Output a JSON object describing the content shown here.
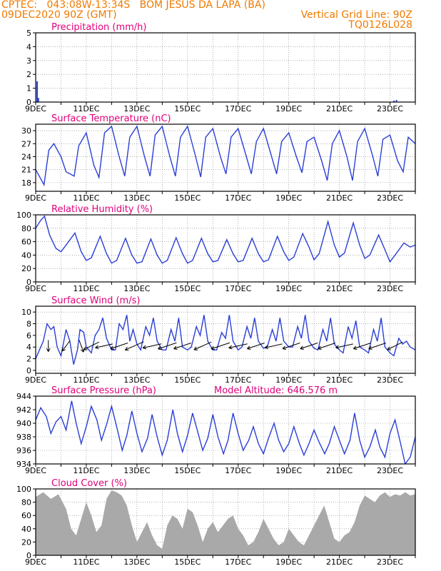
{
  "header": {
    "line1_left": "CPTEC:   043:08W-13:34S   BOM JESUS DA LAPA (BA)",
    "line2_left": "09DEC2020 90Z (GMT)",
    "line2_right": "Vertical Grid Line: 90Z",
    "line3_right": "TQ0126L028"
  },
  "colors": {
    "header": "#f07a00",
    "title": "#e0007a",
    "series": "#2a3fd6",
    "cloud": "#a9a9a9",
    "grid": "#808080"
  },
  "x_axis_labels": [
    "9DEC",
    "11DEC",
    "13DEC",
    "15DEC",
    "17DEC",
    "19DEC",
    "21DEC",
    "23DEC"
  ],
  "chart_data": [
    {
      "id": "precip",
      "type": "bar",
      "title": "Precipitation (mm/h)",
      "ylim": [
        0,
        5
      ],
      "yticks": [
        "0",
        "1",
        "2",
        "3",
        "4",
        "5"
      ],
      "x": [
        0.0,
        0.05,
        14.1,
        14.2
      ],
      "values": [
        1.5,
        0.3,
        0.1,
        0.15
      ]
    },
    {
      "id": "temp",
      "type": "line",
      "title": "Surface Temperature (nC)",
      "ylim": [
        16,
        31.5
      ],
      "yticks": [
        "18",
        "21",
        "24",
        "27",
        "30"
      ],
      "x": [
        0.0,
        0.33,
        0.52,
        0.72,
        1.0,
        1.2,
        1.52,
        1.7,
        2.0,
        2.3,
        2.5,
        2.72,
        3.0,
        3.3,
        3.52,
        3.72,
        4.0,
        4.3,
        4.52,
        4.72,
        5.0,
        5.3,
        5.52,
        5.72,
        6.0,
        6.3,
        6.52,
        6.72,
        7.0,
        7.3,
        7.52,
        7.72,
        8.0,
        8.3,
        8.52,
        8.72,
        9.0,
        9.3,
        9.52,
        9.72,
        10.0,
        10.3,
        10.52,
        10.72,
        11.0,
        11.3,
        11.52,
        11.72,
        12.0,
        12.3,
        12.52,
        12.72,
        13.0,
        13.3,
        13.52,
        13.72,
        14.0,
        14.3,
        14.52,
        14.72,
        15.0
      ],
      "values": [
        21.0,
        17.5,
        25.5,
        27.0,
        24.0,
        20.5,
        19.5,
        26.5,
        29.5,
        22.0,
        19.2,
        29.5,
        31.0,
        24.0,
        19.5,
        28.5,
        31.0,
        24.0,
        19.5,
        29.0,
        31.0,
        24.0,
        19.5,
        28.5,
        31.0,
        24.5,
        19.3,
        28.5,
        30.5,
        24.0,
        20.0,
        28.5,
        30.5,
        24.5,
        20.0,
        27.5,
        30.5,
        24.5,
        20.0,
        27.5,
        29.5,
        24.0,
        20.3,
        27.5,
        28.5,
        23.0,
        18.5,
        27.0,
        30.0,
        24.0,
        18.5,
        27.5,
        30.5,
        24.5,
        19.5,
        28.0,
        29.0,
        23.0,
        20.5,
        28.5,
        27.0
      ]
    },
    {
      "id": "rh",
      "type": "line",
      "title": "Relative Humidity (%)",
      "ylim": [
        0,
        100
      ],
      "yticks": [
        "0",
        "20",
        "40",
        "60",
        "80",
        "100"
      ],
      "x": [
        0.0,
        0.2,
        0.35,
        0.55,
        0.8,
        1.0,
        1.2,
        1.55,
        1.8,
        2.0,
        2.2,
        2.55,
        2.8,
        3.0,
        3.2,
        3.55,
        3.8,
        4.0,
        4.2,
        4.55,
        4.8,
        5.0,
        5.2,
        5.55,
        5.8,
        6.0,
        6.2,
        6.55,
        6.8,
        7.0,
        7.2,
        7.55,
        7.8,
        8.0,
        8.2,
        8.55,
        8.8,
        9.0,
        9.2,
        9.55,
        9.8,
        10.0,
        10.2,
        10.55,
        10.8,
        11.0,
        11.2,
        11.55,
        11.8,
        12.0,
        12.2,
        12.55,
        12.8,
        13.0,
        13.2,
        13.55,
        13.8,
        14.0,
        14.2,
        14.55,
        14.8,
        15.0
      ],
      "values": [
        80,
        92,
        98,
        70,
        50,
        45,
        55,
        73,
        45,
        32,
        36,
        68,
        42,
        28,
        32,
        65,
        40,
        28,
        30,
        64,
        40,
        28,
        32,
        66,
        42,
        28,
        32,
        65,
        42,
        30,
        32,
        63,
        42,
        30,
        32,
        65,
        42,
        30,
        33,
        68,
        45,
        32,
        37,
        72,
        52,
        33,
        42,
        90,
        55,
        37,
        43,
        88,
        55,
        35,
        40,
        70,
        48,
        30,
        40,
        58,
        52,
        55
      ]
    },
    {
      "id": "wind",
      "type": "line",
      "title": "Surface Wind (m/s)",
      "ylim": [
        -0.5,
        11
      ],
      "yticks": [
        "0",
        "2",
        "4",
        "6",
        "8",
        "10"
      ],
      "x": [
        0.0,
        0.15,
        0.3,
        0.45,
        0.6,
        0.72,
        0.85,
        1.0,
        1.2,
        1.35,
        1.5,
        1.65,
        1.75,
        1.9,
        2.0,
        2.2,
        2.35,
        2.5,
        2.65,
        2.8,
        3.0,
        3.15,
        3.3,
        3.45,
        3.6,
        3.72,
        3.85,
        4.0,
        4.15,
        4.35,
        4.5,
        4.65,
        4.8,
        5.0,
        5.15,
        5.35,
        5.5,
        5.65,
        5.8,
        6.0,
        6.15,
        6.35,
        6.5,
        6.65,
        6.8,
        7.0,
        7.15,
        7.35,
        7.5,
        7.65,
        7.8,
        8.0,
        8.15,
        8.35,
        8.5,
        8.65,
        8.8,
        9.0,
        9.15,
        9.35,
        9.5,
        9.65,
        9.8,
        10.0,
        10.15,
        10.35,
        10.5,
        10.65,
        10.8,
        11.0,
        11.15,
        11.35,
        11.5,
        11.65,
        11.8,
        12.0,
        12.15,
        12.35,
        12.5,
        12.65,
        12.8,
        13.0,
        13.15,
        13.35,
        13.5,
        13.65,
        13.8,
        14.0,
        14.15,
        14.35,
        14.5,
        14.65,
        14.8,
        15.0
      ],
      "values": [
        2.0,
        3.5,
        5.0,
        8.0,
        7.0,
        7.5,
        4.0,
        2.5,
        7.0,
        5.0,
        1.0,
        3.5,
        7.0,
        6.5,
        4.0,
        3.0,
        6.0,
        7.0,
        9.0,
        5.5,
        3.5,
        3.5,
        8.0,
        7.0,
        9.5,
        5.0,
        7.0,
        4.5,
        3.5,
        7.5,
        6.0,
        9.0,
        5.0,
        3.5,
        3.5,
        7.0,
        5.0,
        9.0,
        4.0,
        3.5,
        4.0,
        7.5,
        6.0,
        9.5,
        5.0,
        3.5,
        3.5,
        6.5,
        5.5,
        9.5,
        5.0,
        3.5,
        4.0,
        7.5,
        5.5,
        9.0,
        5.0,
        3.8,
        4.0,
        7.0,
        5.0,
        9.0,
        5.0,
        4.0,
        4.0,
        7.5,
        5.5,
        9.5,
        5.0,
        3.8,
        3.5,
        7.0,
        5.0,
        9.0,
        4.5,
        3.5,
        3.0,
        7.5,
        5.5,
        8.5,
        4.0,
        3.5,
        3.0,
        7.0,
        5.0,
        9.0,
        4.0,
        3.0,
        2.5,
        5.5,
        4.5,
        5.0,
        4.0,
        3.5
      ]
    },
    {
      "id": "pressure",
      "type": "line",
      "title": "Surface Pressure (hPa)",
      "annotation": "Model Altitude: 646.576 m",
      "ylim": [
        934,
        944
      ],
      "yticks": [
        "934",
        "936",
        "938",
        "940",
        "942",
        "944"
      ],
      "x": [
        0.0,
        0.2,
        0.42,
        0.6,
        0.8,
        1.0,
        1.2,
        1.42,
        1.6,
        1.8,
        2.0,
        2.2,
        2.42,
        2.6,
        2.8,
        3.0,
        3.2,
        3.42,
        3.6,
        3.8,
        4.0,
        4.2,
        4.42,
        4.6,
        4.8,
        5.0,
        5.2,
        5.42,
        5.6,
        5.8,
        6.0,
        6.2,
        6.42,
        6.6,
        6.8,
        7.0,
        7.2,
        7.42,
        7.6,
        7.8,
        8.0,
        8.2,
        8.42,
        8.6,
        8.8,
        9.0,
        9.2,
        9.42,
        9.6,
        9.8,
        10.0,
        10.2,
        10.42,
        10.6,
        10.8,
        11.0,
        11.2,
        11.42,
        11.6,
        11.8,
        12.0,
        12.2,
        12.42,
        12.6,
        12.8,
        13.0,
        13.2,
        13.42,
        13.6,
        13.8,
        14.0,
        14.2,
        14.42,
        14.6,
        14.8,
        15.0
      ],
      "values": [
        940.5,
        942.3,
        941.0,
        938.5,
        940.2,
        941.0,
        939.0,
        943.3,
        940.0,
        937.0,
        939.5,
        942.5,
        940.5,
        937.5,
        939.8,
        942.5,
        939.5,
        936.0,
        938.2,
        941.8,
        938.5,
        935.8,
        937.8,
        941.3,
        938.0,
        935.3,
        937.5,
        942.0,
        938.5,
        935.8,
        938.2,
        941.5,
        938.5,
        936.0,
        937.8,
        941.3,
        938.0,
        935.5,
        937.5,
        941.5,
        938.5,
        936.0,
        937.5,
        939.5,
        937.0,
        935.5,
        937.8,
        940.0,
        937.5,
        935.8,
        937.0,
        939.5,
        937.0,
        935.3,
        937.0,
        939.0,
        937.2,
        935.5,
        937.0,
        939.5,
        937.5,
        935.5,
        937.5,
        941.5,
        937.5,
        935.0,
        936.5,
        939.0,
        936.5,
        935.0,
        938.5,
        940.5,
        937.0,
        934.0,
        935.0,
        938.0
      ]
    },
    {
      "id": "cloud",
      "type": "area",
      "title": "Cloud Cover (%)",
      "ylim": [
        0,
        100
      ],
      "yticks": [
        "0",
        "20",
        "40",
        "60",
        "80",
        "100"
      ],
      "x": [
        0.0,
        0.3,
        0.6,
        0.9,
        1.2,
        1.4,
        1.6,
        1.8,
        2.0,
        2.2,
        2.4,
        2.6,
        2.8,
        3.0,
        3.2,
        3.4,
        3.6,
        3.8,
        4.0,
        4.2,
        4.4,
        4.6,
        4.8,
        5.0,
        5.2,
        5.4,
        5.6,
        5.8,
        6.0,
        6.2,
        6.4,
        6.6,
        6.8,
        7.0,
        7.2,
        7.4,
        7.6,
        7.8,
        8.0,
        8.2,
        8.4,
        8.6,
        8.8,
        9.0,
        9.2,
        9.4,
        9.6,
        9.8,
        10.0,
        10.2,
        10.4,
        10.6,
        10.8,
        11.0,
        11.2,
        11.4,
        11.6,
        11.8,
        12.0,
        12.2,
        12.4,
        12.6,
        12.8,
        13.0,
        13.2,
        13.4,
        13.6,
        13.8,
        14.0,
        14.2,
        14.4,
        14.6,
        14.8,
        15.0
      ],
      "values": [
        88,
        95,
        85,
        92,
        70,
        40,
        30,
        55,
        80,
        60,
        35,
        45,
        85,
        98,
        95,
        90,
        75,
        45,
        20,
        35,
        50,
        30,
        15,
        10,
        45,
        60,
        55,
        40,
        70,
        65,
        45,
        20,
        40,
        50,
        35,
        45,
        55,
        60,
        40,
        30,
        15,
        20,
        35,
        55,
        40,
        25,
        15,
        20,
        40,
        30,
        20,
        15,
        30,
        45,
        60,
        75,
        50,
        25,
        20,
        30,
        35,
        50,
        75,
        90,
        85,
        80,
        90,
        95,
        88,
        92,
        90,
        95,
        90,
        92
      ]
    }
  ]
}
